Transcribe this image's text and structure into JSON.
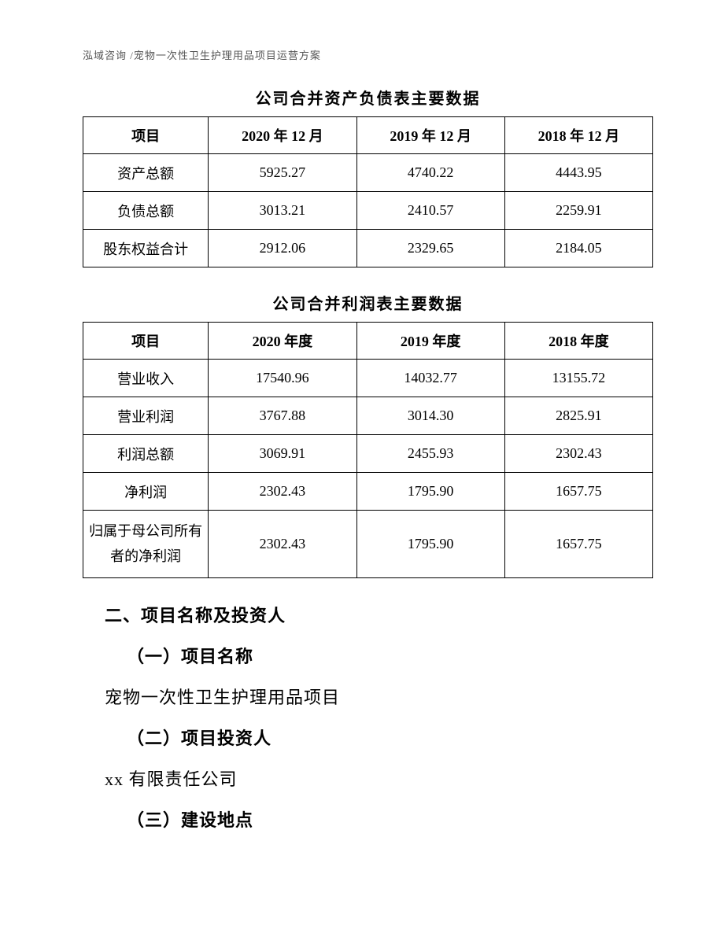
{
  "header": "泓域咨询 /宠物一次性卫生护理用品项目运营方案",
  "table1": {
    "title": "公司合并资产负债表主要数据",
    "columns": [
      "项目",
      "2020 年 12 月",
      "2019 年 12 月",
      "2018 年 12 月"
    ],
    "rows": [
      [
        "资产总额",
        "5925.27",
        "4740.22",
        "4443.95"
      ],
      [
        "负债总额",
        "3013.21",
        "2410.57",
        "2259.91"
      ],
      [
        "股东权益合计",
        "2912.06",
        "2329.65",
        "2184.05"
      ]
    ]
  },
  "table2": {
    "title": "公司合并利润表主要数据",
    "columns": [
      "项目",
      "2020 年度",
      "2019 年度",
      "2018 年度"
    ],
    "rows": [
      [
        "营业收入",
        "17540.96",
        "14032.77",
        "13155.72"
      ],
      [
        "营业利润",
        "3767.88",
        "3014.30",
        "2825.91"
      ],
      [
        "利润总额",
        "3069.91",
        "2455.93",
        "2302.43"
      ],
      [
        "净利润",
        "2302.43",
        "1795.90",
        "1657.75"
      ],
      [
        "归属于母公司所有者的净利润",
        "2302.43",
        "1795.90",
        "1657.75"
      ]
    ]
  },
  "section": {
    "heading": "二、项目名称及投资人",
    "sub1_heading": "（一）项目名称",
    "sub1_text": "宠物一次性卫生护理用品项目",
    "sub2_heading": "（二）项目投资人",
    "sub2_text": "xx 有限责任公司",
    "sub3_heading": "（三）建设地点"
  }
}
